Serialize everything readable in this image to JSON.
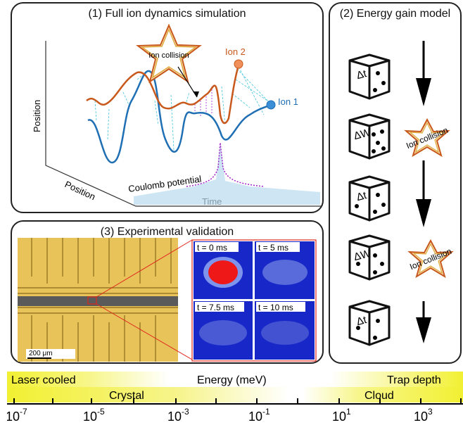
{
  "panel1": {
    "title": "(1) Full ion dynamics simulation",
    "axis_time": "Time",
    "axis_position_vertical": "Position",
    "axis_position_depth": "Position",
    "label_coulomb": "Coulomb potential",
    "label_ion1": "Ion 1",
    "label_ion2": "Ion 2",
    "label_collision": "Ion collision",
    "colors": {
      "ion1": "#1f6fb5",
      "ion2": "#c8581b",
      "connector": "#3fc4dc",
      "coulomb": "#a020c8"
    }
  },
  "panel2": {
    "title": "(2) Energy gain model",
    "steps": [
      {
        "die_label": "Δt",
        "action": "arrow"
      },
      {
        "die_label": "ΔW",
        "action": "Ion collision"
      },
      {
        "die_label": "Δt",
        "action": "arrow"
      },
      {
        "die_label": "ΔW",
        "action": "Ion collision"
      },
      {
        "die_label": "Δt",
        "action": "arrow"
      }
    ]
  },
  "panel3": {
    "title": "(3) Experimental validation",
    "scale_bar": "200 μm",
    "images": [
      {
        "label": "t = 0 ms"
      },
      {
        "label": "t = 5 ms"
      },
      {
        "label": "t = 7.5 ms"
      },
      {
        "label": "t = 10 ms"
      }
    ]
  },
  "energy_scale": {
    "title": "Energy (meV)",
    "regions": {
      "laser_cooled": "Laser cooled",
      "crystal": "Crystal",
      "cloud": "Cloud",
      "trap_depth": "Trap depth"
    },
    "ticks": [
      {
        "base": "10",
        "exp": "-7"
      },
      {
        "base": "10",
        "exp": "-5"
      },
      {
        "base": "10",
        "exp": "-3"
      },
      {
        "base": "10",
        "exp": "-1"
      },
      {
        "base": "10",
        "exp": "1"
      },
      {
        "base": "10",
        "exp": "3"
      }
    ],
    "colors": {
      "bar": "#f2f032",
      "light": "#fbfac0"
    }
  }
}
